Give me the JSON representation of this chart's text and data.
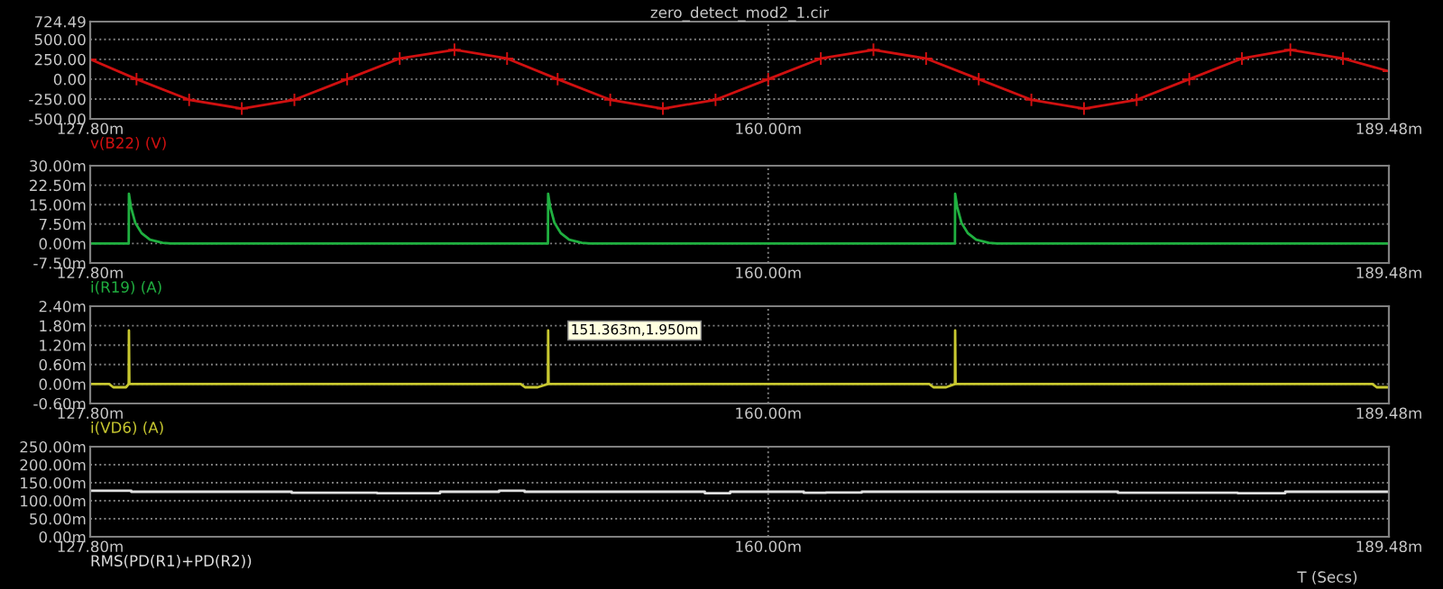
{
  "chart_data": [
    {
      "type": "line",
      "title": "zero_detect_mod2_1.cir",
      "marker": "cross",
      "grid": true,
      "x": [
        127.8,
        130.0,
        132.5,
        135.0,
        137.5,
        140.0,
        142.5,
        145.1,
        147.6,
        150.0,
        152.5,
        155.0,
        157.5,
        160.0,
        162.5,
        165.0,
        167.5,
        170.0,
        172.5,
        175.0,
        177.5,
        180.0,
        182.5,
        184.8,
        187.3,
        189.48
      ],
      "series": [
        {
          "name": "v(B22) (V)",
          "color": "#d01010",
          "values": [
            250,
            0,
            -260,
            -370,
            -260,
            0,
            260,
            370,
            260,
            0,
            -260,
            -370,
            -260,
            0,
            260,
            370,
            260,
            0,
            -260,
            -370,
            -260,
            0,
            260,
            370,
            260,
            100
          ]
        }
      ],
      "xlim": [
        127.8,
        189.48
      ],
      "xticks": [
        {
          "value": 127.8,
          "label": "127.80m"
        },
        {
          "value": 160,
          "label": "160.00m"
        },
        {
          "value": 189.48,
          "label": "189.48m"
        }
      ],
      "ylim": [
        -500,
        724.49
      ],
      "yticks": [
        {
          "value": -500,
          "label": "-500.00"
        },
        {
          "value": -250,
          "label": "-250.00"
        },
        {
          "value": 0,
          "label": "0.00"
        },
        {
          "value": 250,
          "label": "250.00"
        },
        {
          "value": 500,
          "label": "500.00"
        },
        {
          "value": 724.49,
          "label": "724.49"
        }
      ]
    },
    {
      "type": "line",
      "grid": true,
      "x": [
        127.8,
        129.63,
        129.64,
        129.74,
        129.94,
        130.24,
        130.64,
        131.24,
        131.64,
        149.54,
        149.55,
        149.65,
        149.85,
        150.15,
        150.55,
        151.15,
        151.55,
        168.87,
        168.88,
        168.98,
        169.18,
        169.48,
        169.88,
        170.48,
        170.88,
        189.48
      ],
      "series": [
        {
          "name": "i(R19) (A)",
          "color": "#20b040",
          "values": [
            0,
            0,
            19.2,
            14,
            8,
            4,
            1.5,
            0.3,
            0,
            0,
            19.2,
            14,
            8,
            4,
            1.5,
            0.3,
            0,
            0,
            19.2,
            14,
            8,
            4,
            1.5,
            0.3,
            0,
            0
          ]
        }
      ],
      "xlim": [
        127.8,
        189.48
      ],
      "xticks": [
        {
          "value": 127.8,
          "label": "127.80m"
        },
        {
          "value": 160,
          "label": "160.00m"
        },
        {
          "value": 189.48,
          "label": "189.48m"
        }
      ],
      "ylim": [
        -7.5,
        30
      ],
      "yticks": [
        {
          "value": -7.5,
          "label": "-7.50m"
        },
        {
          "value": 0,
          "label": "0.00m"
        },
        {
          "value": 7.5,
          "label": "7.50m"
        },
        {
          "value": 15,
          "label": "15.00m"
        },
        {
          "value": 22.5,
          "label": "22.50m"
        },
        {
          "value": 30,
          "label": "30.00m"
        }
      ]
    },
    {
      "type": "line",
      "grid": true,
      "annotations": [
        "151.363m,1.950m"
      ],
      "x": [
        127.8,
        128.7,
        128.9,
        129.5,
        129.63,
        129.64,
        129.66,
        148.25,
        148.45,
        149.05,
        149.54,
        149.55,
        149.57,
        167.65,
        167.85,
        168.45,
        168.87,
        168.88,
        168.9,
        188.7,
        188.9,
        189.48
      ],
      "series": [
        {
          "name": "i(VD6) (A)",
          "color": "#c8c830",
          "values": [
            0,
            0,
            -0.1,
            -0.1,
            0,
            1.65,
            0,
            0,
            -0.1,
            -0.1,
            0,
            1.65,
            0,
            0,
            -0.1,
            -0.1,
            0,
            1.65,
            0,
            0,
            -0.1,
            -0.1
          ]
        }
      ],
      "xlim": [
        127.8,
        189.48
      ],
      "xticks": [
        {
          "value": 127.8,
          "label": "127.80m"
        },
        {
          "value": 160,
          "label": "160.00m"
        },
        {
          "value": 189.48,
          "label": "189.48m"
        }
      ],
      "ylim": [
        -0.6,
        2.4
      ],
      "yticks": [
        {
          "value": -0.6,
          "label": "-0.60m"
        },
        {
          "value": 0,
          "label": "0.00m"
        },
        {
          "value": 0.6,
          "label": "0.60m"
        },
        {
          "value": 1.2,
          "label": "1.20m"
        },
        {
          "value": 1.8,
          "label": "1.80m"
        },
        {
          "value": 2.4,
          "label": "2.40m"
        }
      ]
    },
    {
      "type": "step",
      "grid": true,
      "xlabel": "T (Secs)",
      "x": [
        127.8,
        129.75,
        137.37,
        141.42,
        144.42,
        147.22,
        148.43,
        156.99,
        158.2,
        161.69,
        162.75,
        164.45,
        176.61,
        182.29,
        184.56,
        189.48
      ],
      "series": [
        {
          "name": "RMS(PD(R1)+PD(R2))",
          "color": "#e0e0e0",
          "values": [
            128,
            125,
            122,
            121,
            125,
            128,
            125,
            121,
            125,
            122,
            123,
            125,
            122,
            121,
            125,
            125
          ]
        }
      ],
      "xlim": [
        127.8,
        189.48
      ],
      "xticks": [
        {
          "value": 127.8,
          "label": "127.80m"
        },
        {
          "value": 160,
          "label": "160.00m"
        },
        {
          "value": 189.48,
          "label": "189.48m"
        }
      ],
      "ylim": [
        0,
        250
      ],
      "yticks": [
        {
          "value": 0,
          "label": "0.00m"
        },
        {
          "value": 50,
          "label": "50.00m"
        },
        {
          "value": 100,
          "label": "100.00m"
        },
        {
          "value": 150,
          "label": "150.00m"
        },
        {
          "value": 200,
          "label": "200.00m"
        },
        {
          "value": 250,
          "label": "250.00m"
        }
      ]
    }
  ]
}
